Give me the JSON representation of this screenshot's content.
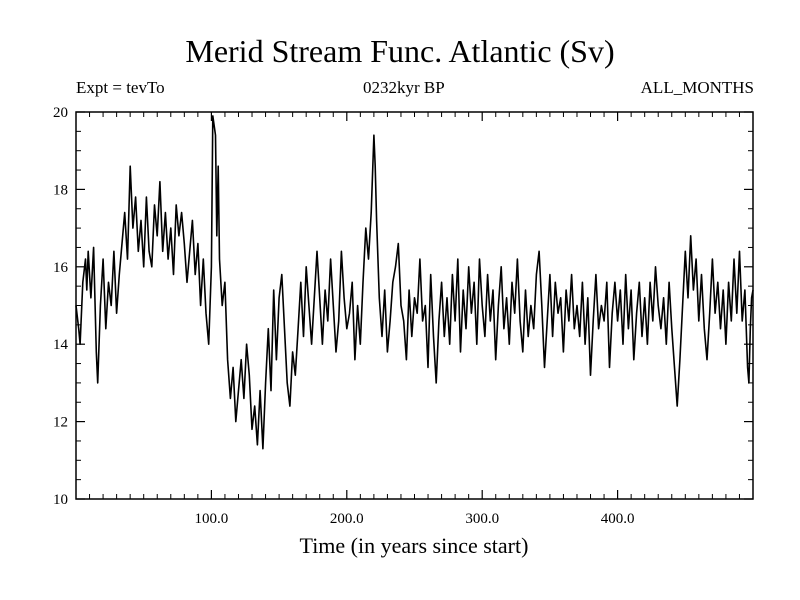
{
  "chart_data": {
    "type": "line",
    "title": "Merid Stream Func. Atlantic (Sv)",
    "subtitle_left": "Expt = tevTo",
    "subtitle_center": "0232kyr BP",
    "subtitle_right": "ALL_MONTHS",
    "xlabel": "Time (in years since start)",
    "ylabel": "",
    "xlim": [
      0,
      500
    ],
    "ylim": [
      10,
      20
    ],
    "xticks": [
      100,
      200,
      300,
      400
    ],
    "xtick_labels": [
      "100.0",
      "200.0",
      "300.0",
      "400.0"
    ],
    "yticks": [
      10,
      12,
      14,
      16,
      18,
      20
    ],
    "ytick_labels": [
      "10",
      "12",
      "14",
      "16",
      "18",
      "20"
    ],
    "grid": false,
    "series": [
      {
        "color": "#000000",
        "anchors": [
          [
            0,
            15.0
          ],
          [
            2,
            14.4
          ],
          [
            3,
            14.0
          ],
          [
            5,
            15.6
          ],
          [
            7,
            16.2
          ],
          [
            8,
            15.4
          ],
          [
            9,
            16.4
          ],
          [
            11,
            15.2
          ],
          [
            13,
            16.5
          ],
          [
            15,
            13.8
          ],
          [
            16,
            13.0
          ],
          [
            18,
            15.0
          ],
          [
            20,
            16.2
          ],
          [
            22,
            14.4
          ],
          [
            24,
            15.6
          ],
          [
            26,
            15.0
          ],
          [
            28,
            16.4
          ],
          [
            30,
            14.8
          ],
          [
            32,
            15.8
          ],
          [
            34,
            16.6
          ],
          [
            36,
            17.4
          ],
          [
            38,
            16.2
          ],
          [
            40,
            18.6
          ],
          [
            42,
            17.0
          ],
          [
            44,
            17.8
          ],
          [
            46,
            16.4
          ],
          [
            48,
            17.2
          ],
          [
            50,
            16.0
          ],
          [
            52,
            17.8
          ],
          [
            54,
            16.4
          ],
          [
            56,
            16.0
          ],
          [
            58,
            17.6
          ],
          [
            60,
            16.8
          ],
          [
            62,
            18.2
          ],
          [
            64,
            16.4
          ],
          [
            66,
            17.4
          ],
          [
            68,
            16.2
          ],
          [
            70,
            17.0
          ],
          [
            72,
            15.8
          ],
          [
            74,
            17.6
          ],
          [
            76,
            16.8
          ],
          [
            78,
            17.4
          ],
          [
            80,
            16.6
          ],
          [
            82,
            15.6
          ],
          [
            84,
            16.4
          ],
          [
            86,
            17.2
          ],
          [
            88,
            15.8
          ],
          [
            90,
            16.6
          ],
          [
            92,
            15.0
          ],
          [
            94,
            16.2
          ],
          [
            96,
            14.8
          ],
          [
            98,
            14.0
          ],
          [
            100,
            16.0
          ],
          [
            101,
            19.9
          ],
          [
            103,
            19.4
          ],
          [
            104,
            16.8
          ],
          [
            105,
            18.6
          ],
          [
            106,
            16.2
          ],
          [
            108,
            15.0
          ],
          [
            110,
            15.6
          ],
          [
            112,
            13.6
          ],
          [
            114,
            12.6
          ],
          [
            116,
            13.4
          ],
          [
            118,
            12.0
          ],
          [
            120,
            12.8
          ],
          [
            122,
            13.6
          ],
          [
            124,
            12.6
          ],
          [
            126,
            14.0
          ],
          [
            128,
            13.2
          ],
          [
            130,
            11.8
          ],
          [
            132,
            12.4
          ],
          [
            134,
            11.4
          ],
          [
            136,
            12.8
          ],
          [
            138,
            11.3
          ],
          [
            140,
            13.0
          ],
          [
            142,
            14.4
          ],
          [
            144,
            12.8
          ],
          [
            146,
            15.4
          ],
          [
            148,
            13.6
          ],
          [
            150,
            15.2
          ],
          [
            152,
            15.8
          ],
          [
            154,
            14.4
          ],
          [
            156,
            13.0
          ],
          [
            158,
            12.4
          ],
          [
            160,
            13.8
          ],
          [
            162,
            13.2
          ],
          [
            164,
            14.4
          ],
          [
            166,
            15.6
          ],
          [
            168,
            14.2
          ],
          [
            170,
            16.0
          ],
          [
            172,
            15.0
          ],
          [
            174,
            14.0
          ],
          [
            176,
            15.2
          ],
          [
            178,
            16.4
          ],
          [
            180,
            15.2
          ],
          [
            182,
            14.0
          ],
          [
            184,
            15.4
          ],
          [
            186,
            14.6
          ],
          [
            188,
            16.2
          ],
          [
            190,
            15.0
          ],
          [
            192,
            13.8
          ],
          [
            194,
            14.6
          ],
          [
            196,
            16.4
          ],
          [
            198,
            15.2
          ],
          [
            200,
            14.4
          ],
          [
            202,
            14.8
          ],
          [
            204,
            15.6
          ],
          [
            206,
            13.6
          ],
          [
            208,
            15.0
          ],
          [
            210,
            14.0
          ],
          [
            212,
            15.6
          ],
          [
            214,
            17.0
          ],
          [
            216,
            16.2
          ],
          [
            218,
            17.4
          ],
          [
            220,
            19.4
          ],
          [
            221,
            18.6
          ],
          [
            222,
            17.2
          ],
          [
            224,
            15.2
          ],
          [
            226,
            14.2
          ],
          [
            228,
            15.4
          ],
          [
            230,
            13.8
          ],
          [
            232,
            14.6
          ],
          [
            234,
            15.6
          ],
          [
            236,
            16.0
          ],
          [
            238,
            16.6
          ],
          [
            240,
            15.0
          ],
          [
            242,
            14.6
          ],
          [
            244,
            13.6
          ],
          [
            246,
            15.4
          ],
          [
            248,
            14.2
          ],
          [
            250,
            15.2
          ],
          [
            252,
            14.8
          ],
          [
            254,
            16.2
          ],
          [
            256,
            14.6
          ],
          [
            258,
            15.0
          ],
          [
            260,
            13.4
          ],
          [
            262,
            15.8
          ],
          [
            264,
            14.2
          ],
          [
            266,
            13.0
          ],
          [
            268,
            14.6
          ],
          [
            270,
            15.6
          ],
          [
            272,
            14.2
          ],
          [
            274,
            15.2
          ],
          [
            276,
            14.0
          ],
          [
            278,
            15.8
          ],
          [
            280,
            14.6
          ],
          [
            282,
            16.2
          ],
          [
            284,
            13.8
          ],
          [
            286,
            15.4
          ],
          [
            288,
            14.4
          ],
          [
            290,
            16.0
          ],
          [
            292,
            14.8
          ],
          [
            294,
            15.6
          ],
          [
            296,
            14.0
          ],
          [
            298,
            16.2
          ],
          [
            300,
            15.0
          ],
          [
            302,
            14.2
          ],
          [
            304,
            15.8
          ],
          [
            306,
            14.6
          ],
          [
            308,
            15.4
          ],
          [
            310,
            13.6
          ],
          [
            312,
            15.0
          ],
          [
            314,
            16.0
          ],
          [
            316,
            14.4
          ],
          [
            318,
            15.2
          ],
          [
            320,
            14.0
          ],
          [
            322,
            15.6
          ],
          [
            324,
            14.8
          ],
          [
            326,
            16.2
          ],
          [
            328,
            14.6
          ],
          [
            330,
            13.8
          ],
          [
            332,
            15.4
          ],
          [
            334,
            14.2
          ],
          [
            336,
            15.0
          ],
          [
            338,
            14.4
          ],
          [
            340,
            15.8
          ],
          [
            342,
            16.4
          ],
          [
            344,
            15.0
          ],
          [
            346,
            13.4
          ],
          [
            348,
            14.6
          ],
          [
            350,
            15.8
          ],
          [
            352,
            14.2
          ],
          [
            354,
            15.6
          ],
          [
            356,
            14.8
          ],
          [
            358,
            15.2
          ],
          [
            360,
            13.8
          ],
          [
            362,
            15.4
          ],
          [
            364,
            14.6
          ],
          [
            366,
            15.8
          ],
          [
            368,
            14.4
          ],
          [
            370,
            15.0
          ],
          [
            372,
            14.2
          ],
          [
            374,
            15.6
          ],
          [
            376,
            14.0
          ],
          [
            378,
            15.2
          ],
          [
            380,
            13.2
          ],
          [
            382,
            14.6
          ],
          [
            384,
            15.8
          ],
          [
            386,
            14.4
          ],
          [
            388,
            15.0
          ],
          [
            390,
            14.6
          ],
          [
            392,
            15.6
          ],
          [
            394,
            13.4
          ],
          [
            396,
            14.8
          ],
          [
            398,
            15.6
          ],
          [
            400,
            14.6
          ],
          [
            402,
            15.4
          ],
          [
            404,
            14.0
          ],
          [
            406,
            15.8
          ],
          [
            408,
            14.4
          ],
          [
            410,
            15.4
          ],
          [
            412,
            13.6
          ],
          [
            414,
            14.8
          ],
          [
            416,
            15.6
          ],
          [
            418,
            14.2
          ],
          [
            420,
            15.2
          ],
          [
            422,
            14.0
          ],
          [
            424,
            15.6
          ],
          [
            426,
            14.6
          ],
          [
            428,
            16.0
          ],
          [
            430,
            15.0
          ],
          [
            432,
            14.4
          ],
          [
            434,
            15.2
          ],
          [
            436,
            14.0
          ],
          [
            438,
            15.6
          ],
          [
            440,
            14.4
          ],
          [
            442,
            13.4
          ],
          [
            444,
            12.4
          ],
          [
            446,
            13.6
          ],
          [
            448,
            15.0
          ],
          [
            450,
            16.4
          ],
          [
            452,
            15.2
          ],
          [
            454,
            16.8
          ],
          [
            456,
            15.4
          ],
          [
            458,
            16.2
          ],
          [
            460,
            14.6
          ],
          [
            462,
            15.8
          ],
          [
            464,
            14.4
          ],
          [
            466,
            13.6
          ],
          [
            468,
            14.8
          ],
          [
            470,
            16.2
          ],
          [
            472,
            14.8
          ],
          [
            474,
            15.6
          ],
          [
            476,
            14.4
          ],
          [
            478,
            15.4
          ],
          [
            480,
            14.0
          ],
          [
            482,
            15.6
          ],
          [
            484,
            14.6
          ],
          [
            486,
            16.2
          ],
          [
            488,
            14.8
          ],
          [
            490,
            16.4
          ],
          [
            492,
            14.6
          ],
          [
            494,
            15.4
          ],
          [
            496,
            13.4
          ],
          [
            497,
            13.0
          ],
          [
            498,
            14.4
          ],
          [
            499,
            15.2
          ],
          [
            500,
            15.4
          ]
        ]
      }
    ]
  }
}
